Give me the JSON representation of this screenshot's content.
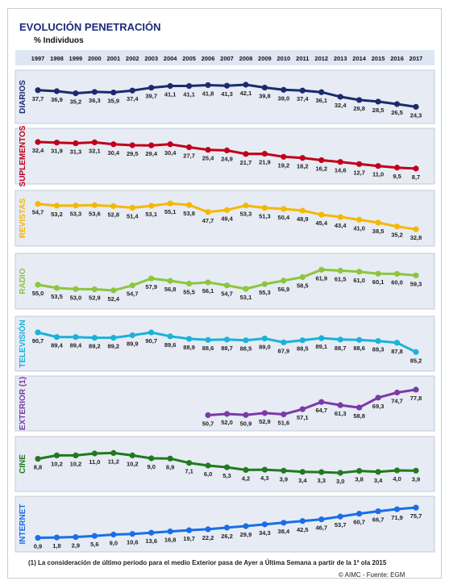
{
  "title": "EVOLUCIÓN PENETRACIÓN",
  "subtitle": "% Individuos",
  "footnote": "(1) La consideración de último periodo  para el medio Exterior pasa de Ayer a Última Semana a partir de la 1ª ola 2015",
  "source": "© AIMC - Fuente: EGM",
  "chart_data": {
    "type": "line",
    "x": [
      "1997",
      "1998",
      "1999",
      "2000",
      "2001",
      "2002",
      "2003",
      "2004",
      "2005",
      "2006",
      "2007",
      "2008",
      "2009",
      "2010",
      "2011",
      "2012",
      "2013",
      "2014",
      "2015",
      "2016",
      "2017"
    ],
    "series": [
      {
        "name": "DIARIOS",
        "color": "#1a2b6e",
        "values": [
          37.7,
          36.9,
          35.2,
          36.3,
          35.9,
          37.4,
          39.7,
          41.1,
          41.1,
          41.8,
          41.3,
          42.1,
          39.8,
          38.0,
          37.4,
          36.1,
          32.4,
          29.8,
          28.5,
          26.5,
          24.3
        ],
        "labels": [
          "37,7",
          "36,9",
          "35,2",
          "36,3",
          "35,9",
          "37,4",
          "39,7",
          "41,1",
          "41,1",
          "41,8",
          "41,3",
          "42,1",
          "39,8",
          "38,0",
          "37,4",
          "36,1",
          "32,4",
          "29,8",
          "28,5",
          "26,5",
          "24,3"
        ]
      },
      {
        "name": "SUPLEMENTOS",
        "color": "#c0001a",
        "values": [
          32.4,
          31.9,
          31.3,
          32.1,
          30.4,
          29.5,
          29.4,
          30.4,
          27.7,
          25.4,
          24.9,
          21.7,
          21.9,
          19.2,
          18.2,
          16.2,
          14.6,
          12.7,
          11.0,
          9.5,
          8.7
        ],
        "labels": [
          "32,4",
          "31,9",
          "31,3",
          "32,1",
          "30,4",
          "29,5",
          "29,4",
          "30,4",
          "27,7",
          "25,4",
          "24,9",
          "21,7",
          "21,9",
          "19,2",
          "18,2",
          "16,2",
          "14,6",
          "12,7",
          "11,0",
          "9,5",
          "8,7"
        ]
      },
      {
        "name": "REVISTAS",
        "color": "#f5b800",
        "values": [
          54.7,
          53.2,
          53.3,
          53.6,
          52.8,
          51.4,
          53.1,
          55.1,
          53.8,
          47.7,
          49.4,
          53.3,
          51.3,
          50.4,
          48.9,
          45.4,
          43.4,
          41.0,
          38.5,
          35.2,
          32.8
        ],
        "labels": [
          "54,7",
          "53,2",
          "53,3",
          "53,6",
          "52,8",
          "51,4",
          "53,1",
          "55,1",
          "53,8",
          "47,7",
          "49,4",
          "53,3",
          "51,3",
          "50,4",
          "48,9",
          "45,4",
          "43,4",
          "41,0",
          "38,5",
          "35,2",
          "32,8"
        ]
      },
      {
        "name": "RADIO",
        "color": "#8cc63e",
        "values": [
          55.0,
          53.5,
          53.0,
          52.9,
          52.4,
          54.7,
          57.9,
          56.8,
          55.5,
          56.1,
          54.7,
          53.1,
          55.3,
          56.9,
          58.5,
          61.9,
          61.5,
          61.0,
          60.1,
          60.0,
          59.3
        ],
        "labels": [
          "55,0",
          "53,5",
          "53,0",
          "52,9",
          "52,4",
          "54,7",
          "57,9",
          "56,8",
          "55,5",
          "56,1",
          "54,7",
          "53,1",
          "55,3",
          "56,9",
          "58,5",
          "61,9",
          "61,5",
          "61,0",
          "60,1",
          "60,0",
          "59,3"
        ]
      },
      {
        "name": "TELEVISIÓN",
        "color": "#1ab2d8",
        "values": [
          90.7,
          89.4,
          89.4,
          89.2,
          89.2,
          89.9,
          90.7,
          89.6,
          88.9,
          88.6,
          88.7,
          88.5,
          89.0,
          87.9,
          88.5,
          89.1,
          88.7,
          88.6,
          88.3,
          87.8,
          85.2
        ],
        "labels": [
          "90,7",
          "89,4",
          "89,4",
          "89,2",
          "89,2",
          "89,9",
          "90,7",
          "89,6",
          "88,9",
          "88,6",
          "88,7",
          "88,5",
          "89,0",
          "87,9",
          "88,5",
          "89,1",
          "88,7",
          "88,6",
          "88,3",
          "87,8",
          "85,2"
        ]
      },
      {
        "name": "EXTERIOR (1)",
        "color": "#7b3aa6",
        "values": [
          null,
          null,
          null,
          null,
          null,
          null,
          null,
          null,
          null,
          50.7,
          52.0,
          50.9,
          52.9,
          51.6,
          57.1,
          64.7,
          61.3,
          58.8,
          69.3,
          74.7,
          77.8
        ],
        "labels": [
          "",
          "",
          "",
          "",
          "",
          "",
          "",
          "",
          "",
          "50,7",
          "52,0",
          "50,9",
          "52,9",
          "51,6",
          "57,1",
          "64,7",
          "61,3",
          "58,8",
          "69,3",
          "74,7",
          "77,8"
        ]
      },
      {
        "name": "CINE",
        "color": "#217a1e",
        "values": [
          8.8,
          10.2,
          10.2,
          11.0,
          11.2,
          10.2,
          9.0,
          8.9,
          7.1,
          6.0,
          5.3,
          4.2,
          4.3,
          3.9,
          3.4,
          3.3,
          3.0,
          3.8,
          3.4,
          4.0,
          3.9
        ],
        "labels": [
          "8,8",
          "10,2",
          "10,2",
          "11,0",
          "11,2",
          "10,2",
          "9,0",
          "8,9",
          "7,1",
          "6,0",
          "5,3",
          "4,2",
          "4,3",
          "3,9",
          "3,4",
          "3,3",
          "3,0",
          "3,8",
          "3,4",
          "4,0",
          "3,9"
        ]
      },
      {
        "name": "INTERNET",
        "color": "#1a6ee6",
        "values": [
          0.9,
          1.8,
          2.9,
          5.6,
          9.0,
          10.6,
          13.6,
          16.8,
          19.7,
          22.2,
          26.2,
          29.9,
          34.3,
          38.4,
          42.5,
          46.7,
          53.7,
          60.7,
          66.7,
          71.9,
          75.7
        ],
        "labels": [
          "0,9",
          "1,8",
          "2,9",
          "5,6",
          "9,0",
          "10,6",
          "13,6",
          "16,8",
          "19,7",
          "22,2",
          "26,2",
          "29,9",
          "34,3",
          "38,4",
          "42,5",
          "46,7",
          "53,7",
          "60,7",
          "66,7",
          "71,9",
          "75,7"
        ]
      }
    ]
  }
}
